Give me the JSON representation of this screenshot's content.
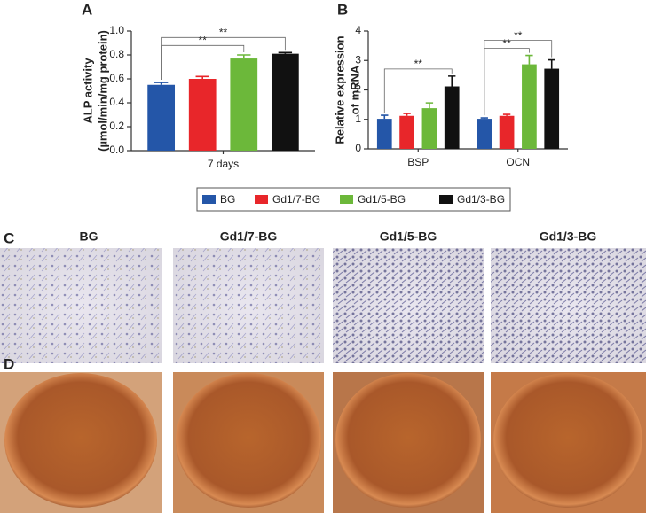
{
  "chart_data": [
    {
      "type": "bar",
      "panel": "A",
      "ylabel": [
        "ALP activity",
        "(µmol/min/mg protein)"
      ],
      "categories": [
        "7 days"
      ],
      "series": [
        {
          "name": "BG",
          "color": "#2456a8",
          "values": [
            0.55
          ],
          "errors": [
            0.02
          ]
        },
        {
          "name": "Gd1/7-BG",
          "color": "#e8262a",
          "values": [
            0.6
          ],
          "errors": [
            0.02
          ]
        },
        {
          "name": "Gd1/5-BG",
          "color": "#6cb83a",
          "values": [
            0.77
          ],
          "errors": [
            0.03
          ]
        },
        {
          "name": "Gd1/3-BG",
          "color": "#111111",
          "values": [
            0.81
          ],
          "errors": [
            0.01
          ]
        }
      ],
      "ylim": [
        0,
        1.0
      ],
      "yticks": [
        {
          "value": 0,
          "label": "0.0"
        },
        {
          "value": 0.2,
          "label": "0.2"
        },
        {
          "value": 0.4,
          "label": "0.4"
        },
        {
          "value": 0.6,
          "label": "0.6"
        },
        {
          "value": 0.8,
          "label": "0.8"
        },
        {
          "value": 1.0,
          "label": "1.0"
        }
      ],
      "annotations": [
        {
          "text": "**",
          "category": 0,
          "from": 0,
          "to": 2
        },
        {
          "text": "**",
          "category": 0,
          "from": 0,
          "to": 3
        }
      ]
    },
    {
      "type": "bar",
      "panel": "B",
      "ylabel": [
        "Relative expression",
        "of mRNA"
      ],
      "categories": [
        "BSP",
        "OCN"
      ],
      "series": [
        {
          "color": "#2456a8",
          "values": [
            1.02,
            1.02
          ],
          "errors": [
            0.12,
            0.03
          ]
        },
        {
          "color": "#e8262a",
          "values": [
            1.12,
            1.12
          ],
          "errors": [
            0.08,
            0.05
          ]
        },
        {
          "color": "#6cb83a",
          "values": [
            1.38,
            2.87
          ],
          "errors": [
            0.18,
            0.3
          ]
        },
        {
          "color": "#111111",
          "values": [
            2.12,
            2.72
          ],
          "errors": [
            0.35,
            0.3
          ]
        }
      ],
      "ylim": [
        0,
        4
      ],
      "yticks": [
        0,
        1,
        2,
        3,
        4
      ],
      "annotations": [
        {
          "text": "**",
          "category": 0,
          "from": 0,
          "to": 3
        },
        {
          "text": "**",
          "category": 1,
          "from": 0,
          "to": 2
        },
        {
          "text": "**",
          "category": 1,
          "from": 0,
          "to": 3
        }
      ]
    }
  ],
  "panels": [
    {
      "letter": "C",
      "titles": [
        "BG",
        "Gd1/7-BG",
        "Gd1/5-BG",
        "Gd1/3-BG"
      ]
    },
    {
      "letter": "D"
    }
  ]
}
